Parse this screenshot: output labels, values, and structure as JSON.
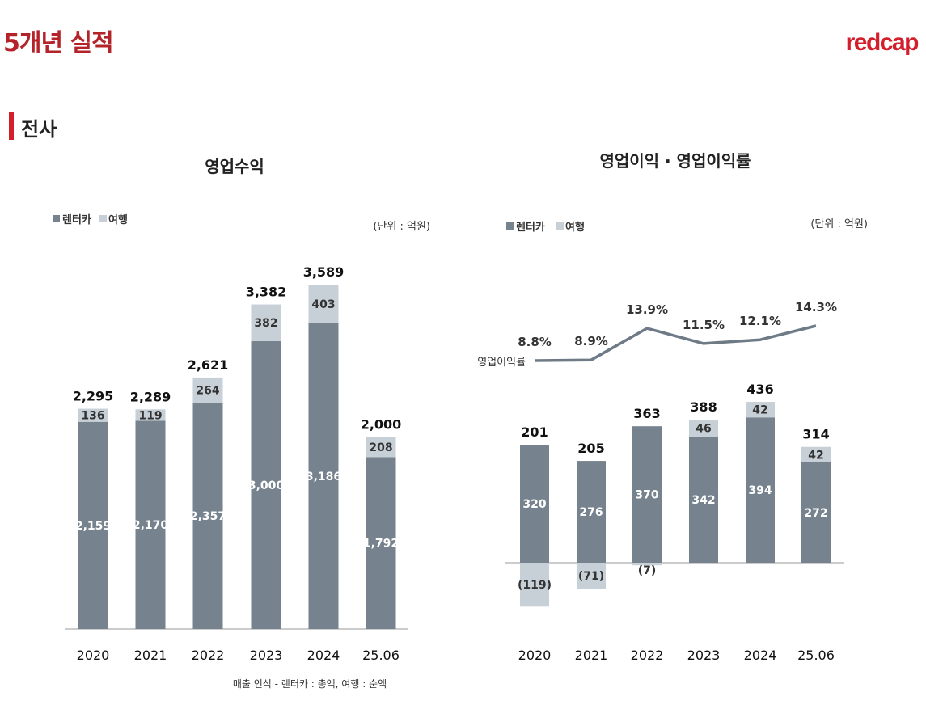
{
  "header": {
    "title": "5개년 실적",
    "logo": "redcap",
    "section": "전사"
  },
  "footnote": "매출 인식 -  렌터카 : 총액, 여행 : 순액",
  "colors": {
    "rental": "#76838e",
    "travel": "#c7cfd7",
    "line": "#6e7b86",
    "accent": "#d21f2b"
  },
  "chart_data": [
    {
      "type": "bar",
      "stacked": true,
      "title": "영업수익",
      "unit": "(단위 : 억원)",
      "legend": [
        "렌터카",
        "여행"
      ],
      "legend_position": "top-left",
      "categories": [
        "2020",
        "2021",
        "2022",
        "2023",
        "2024",
        "25.06"
      ],
      "series": [
        {
          "name": "렌터카",
          "values": [
            2159,
            2170,
            2357,
            3000,
            3186,
            1792
          ],
          "labels": [
            "2,159",
            "2,170",
            "2,357",
            "3,000",
            "3,186",
            "1,792"
          ]
        },
        {
          "name": "여행",
          "values": [
            136,
            119,
            264,
            382,
            403,
            208
          ],
          "labels": [
            "136",
            "119",
            "264",
            "382",
            "403",
            "208"
          ]
        }
      ],
      "totals": [
        "2,295",
        "2,289",
        "2,621",
        "3,382",
        "3,589",
        "2,000"
      ],
      "ylim": [
        0,
        3800
      ]
    },
    {
      "type": "bar",
      "stacked": true,
      "title": "영업이익 · 영업이익률",
      "unit": "(단위 : 억원)",
      "legend": [
        "렌터카",
        "여행"
      ],
      "legend_position": "top-left",
      "categories": [
        "2020",
        "2021",
        "2022",
        "2023",
        "2024",
        "25.06"
      ],
      "series": [
        {
          "name": "렌터카",
          "values": [
            320,
            276,
            370,
            342,
            394,
            272
          ],
          "labels": [
            "320",
            "276",
            "370",
            "342",
            "394",
            "272"
          ]
        },
        {
          "name": "여행",
          "values": [
            -119,
            -71,
            -7,
            46,
            42,
            42
          ],
          "labels": [
            "(119)",
            "(71)",
            "(7)",
            "46",
            "42",
            "42"
          ]
        }
      ],
      "totals": [
        "201",
        "205",
        "363",
        "388",
        "436",
        "314"
      ],
      "line": {
        "name": "영업이익률",
        "values": [
          8.8,
          8.9,
          13.9,
          11.5,
          12.1,
          14.3
        ],
        "labels": [
          "8.8%",
          "8.9%",
          "13.9%",
          "11.5%",
          "12.1%",
          "14.3%"
        ]
      },
      "ylim": [
        -150,
        450
      ]
    }
  ]
}
